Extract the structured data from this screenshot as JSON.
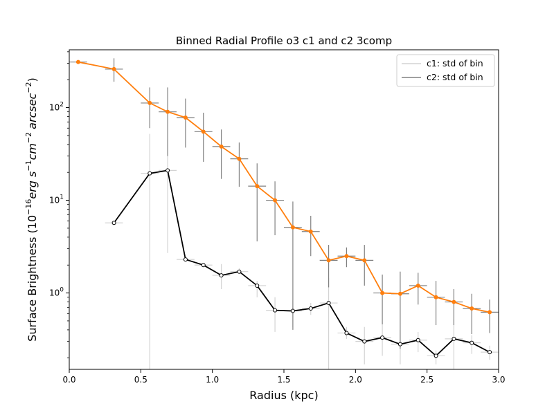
{
  "chart_data": {
    "type": "line",
    "title": "Binned Radial Profile o3 c1 and c2 3comp",
    "xlabel": "Radius (kpc)",
    "ylabel": {
      "prefix": "Surface Brightness (10",
      "exp1": "−16",
      "erg": "erg s",
      "exp2": "−1",
      "cm": "cm",
      "exp3": "−2",
      "arcsec": "arcsec",
      "exp4": "−2",
      "suffix": ")"
    },
    "xlim": [
      0.0,
      3.0
    ],
    "ylim": [
      0.15,
      420
    ],
    "yscale": "log",
    "grid": false,
    "legend_position": "top-right",
    "xticks": [
      {
        "value": 0.0,
        "label": "0.0"
      },
      {
        "value": 0.5,
        "label": "0.5"
      },
      {
        "value": 1.0,
        "label": "1.0"
      },
      {
        "value": 1.5,
        "label": "1.5"
      },
      {
        "value": 2.0,
        "label": "2.0"
      },
      {
        "value": 2.5,
        "label": "2.5"
      },
      {
        "value": 3.0,
        "label": "3.0"
      }
    ],
    "yticks": [
      {
        "value": 1,
        "base": "10",
        "exp": "0"
      },
      {
        "value": 10,
        "base": "10",
        "exp": "1"
      },
      {
        "value": 100,
        "base": "10",
        "exp": "2"
      }
    ],
    "xerr": 0.0625,
    "legend": [
      {
        "label": "c1: std of bin",
        "color": "#d3d3d3"
      },
      {
        "label": "c2: std of bin",
        "color": "#808080"
      }
    ],
    "series": [
      {
        "color": "#ff7f0e",
        "errcolor": "#808080",
        "marker_face": "#ff7f0e",
        "x": [
          0.0625,
          0.3125,
          0.5625,
          0.6875,
          0.8125,
          0.9375,
          1.0625,
          1.1875,
          1.3125,
          1.4375,
          1.5625,
          1.6875,
          1.8125,
          1.9375,
          2.0625,
          2.1875,
          2.3125,
          2.4375,
          2.5625,
          2.6875,
          2.8125,
          2.9375
        ],
        "y": [
          310,
          260,
          112,
          90,
          78,
          55,
          38,
          28,
          14.2,
          10,
          5.1,
          4.6,
          2.25,
          2.5,
          2.25,
          1.0,
          0.98,
          1.2,
          0.9,
          0.8,
          0.68,
          0.62
        ],
        "ylo": [
          310,
          190,
          60,
          30,
          37,
          26,
          17,
          14,
          3.6,
          4.2,
          0.4,
          2.5,
          1.15,
          1.9,
          1.2,
          0.46,
          0.25,
          0.75,
          0.45,
          0.45,
          0.36,
          0.37
        ],
        "yhi": [
          310,
          340,
          165,
          165,
          125,
          88,
          58,
          42,
          25,
          16,
          9.7,
          6.8,
          3.3,
          3.1,
          3.3,
          1.58,
          1.7,
          1.65,
          1.35,
          1.1,
          0.98,
          0.85
        ]
      },
      {
        "color": "#000000",
        "errcolor": "#d3d3d3",
        "marker_face": "#ffffff",
        "x": [
          0.3125,
          0.5625,
          0.6875,
          0.8125,
          0.9375,
          1.0625,
          1.1875,
          1.3125,
          1.4375,
          1.5625,
          1.6875,
          1.8125,
          1.9375,
          2.0625,
          2.1875,
          2.3125,
          2.4375,
          2.5625,
          2.6875,
          2.8125,
          2.9375
        ],
        "y": [
          5.7,
          19.5,
          21,
          2.3,
          2.0,
          1.55,
          1.7,
          1.2,
          0.65,
          0.64,
          0.68,
          0.78,
          0.37,
          0.3,
          0.33,
          0.28,
          0.31,
          0.21,
          0.32,
          0.29,
          0.23
        ],
        "ylo": [
          5.7,
          0.1,
          2.7,
          2.3,
          2.0,
          1.1,
          1.7,
          0.9,
          0.38,
          0.43,
          0.58,
          0.1,
          0.32,
          0.17,
          0.21,
          0.17,
          0.23,
          0.17,
          0.1,
          0.22,
          0.19
        ],
        "yhi": [
          5.7,
          52,
          45,
          2.3,
          2.0,
          2.05,
          1.85,
          1.35,
          0.9,
          0.83,
          0.78,
          1.45,
          0.43,
          0.43,
          0.48,
          0.4,
          0.38,
          0.24,
          0.52,
          0.35,
          0.27
        ]
      }
    ]
  }
}
